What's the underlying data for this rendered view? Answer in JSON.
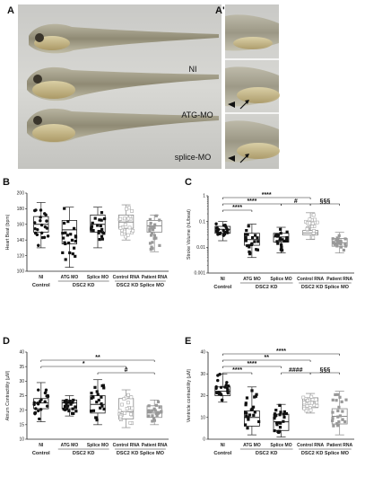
{
  "images": {
    "panel_a_letter": "A",
    "panel_a2_letter": "A'",
    "labels": [
      "NI",
      "ATG-MO",
      "splice-MO"
    ]
  },
  "x_labels": [
    "NI",
    "ATG MO",
    "Splice MO",
    "Control RNA",
    "Patient RNA"
  ],
  "group_labels": [
    "Control",
    "DSC2 KD",
    "DSC2 KD Splice MO"
  ],
  "chart_data": [
    {
      "panel": "B",
      "type": "box",
      "ylabel": "Heart Beat (bpm)",
      "ylim": [
        100,
        200
      ],
      "yticks": [
        "100",
        "120",
        "140",
        "160",
        "180",
        "200"
      ],
      "log": false,
      "boxes": [
        {
          "min": 130,
          "q1": 150,
          "median": 160,
          "q3": 170,
          "max": 188
        },
        {
          "min": 105,
          "q1": 135,
          "median": 153,
          "q3": 165,
          "max": 182
        },
        {
          "min": 130,
          "q1": 150,
          "median": 160,
          "q3": 172,
          "max": 182
        },
        {
          "min": 140,
          "q1": 155,
          "median": 163,
          "q3": 172,
          "max": 185
        },
        {
          "min": 125,
          "q1": 150,
          "median": 158,
          "q3": 165,
          "max": 172
        }
      ],
      "sig": []
    },
    {
      "panel": "C",
      "type": "box",
      "ylabel": "Stroke Volume (nL/beat)",
      "log": true,
      "ylim": [
        0.001,
        1
      ],
      "yticks": [
        "0.001",
        "0.01",
        "0.1",
        "1"
      ],
      "yticks_values": [
        0.001,
        0.01,
        0.1,
        1
      ],
      "boxes": [
        {
          "min": 0.018,
          "q1": 0.035,
          "median": 0.05,
          "q3": 0.065,
          "max": 0.1
        },
        {
          "min": 0.004,
          "q1": 0.012,
          "median": 0.02,
          "q3": 0.035,
          "max": 0.08
        },
        {
          "min": 0.006,
          "q1": 0.016,
          "median": 0.025,
          "q3": 0.035,
          "max": 0.06
        },
        {
          "min": 0.02,
          "q1": 0.03,
          "median": 0.036,
          "q3": 0.045,
          "max": 0.22
        },
        {
          "min": 0.006,
          "q1": 0.011,
          "median": 0.015,
          "q3": 0.022,
          "max": 0.038
        }
      ],
      "sig": [
        {
          "from": 0,
          "to": 3,
          "label": "****",
          "level": 4
        },
        {
          "from": 0,
          "to": 2,
          "label": "****",
          "level": 3
        },
        {
          "from": 0,
          "to": 1,
          "label": "****",
          "level": 2
        },
        {
          "from": 2,
          "to": 3,
          "label": "#",
          "level": 3
        },
        {
          "from": 3,
          "to": 4,
          "label": "§§§",
          "level": 3
        }
      ]
    },
    {
      "panel": "D",
      "type": "box",
      "ylabel": "Atrium Contractility (µM)",
      "ylim": [
        10,
        40
      ],
      "yticks": [
        "10",
        "15",
        "20",
        "25",
        "30",
        "35",
        "40"
      ],
      "log": false,
      "boxes": [
        {
          "min": 16,
          "q1": 20.5,
          "median": 22.5,
          "q3": 24,
          "max": 29.5
        },
        {
          "min": 18,
          "q1": 20.5,
          "median": 22.5,
          "q3": 23.5,
          "max": 25
        },
        {
          "min": 15,
          "q1": 19,
          "median": 22,
          "q3": 25,
          "max": 30.5
        },
        {
          "min": 14,
          "q1": 17,
          "median": 19.5,
          "q3": 24,
          "max": 27
        },
        {
          "min": 15,
          "q1": 17.5,
          "median": 19,
          "q3": 21.5,
          "max": 23.5
        }
      ],
      "sig": [
        {
          "from": 0,
          "to": 4,
          "label": "**",
          "level": 3
        },
        {
          "from": 0,
          "to": 3,
          "label": "*",
          "level": 2
        },
        {
          "from": 2,
          "to": 4,
          "label": "#",
          "level": 1
        }
      ]
    },
    {
      "panel": "E",
      "type": "box",
      "ylabel": "Ventricle contractility (µM)",
      "ylim": [
        0,
        40
      ],
      "yticks": [
        "0",
        "10",
        "20",
        "30",
        "40"
      ],
      "log": false,
      "boxes": [
        {
          "min": 17,
          "q1": 20,
          "median": 22,
          "q3": 24,
          "max": 30
        },
        {
          "min": 2,
          "q1": 6,
          "median": 10,
          "q3": 13,
          "max": 24
        },
        {
          "min": 1,
          "q1": 4,
          "median": 8,
          "q3": 11.5,
          "max": 16
        },
        {
          "min": 12,
          "q1": 14.5,
          "median": 17,
          "q3": 19,
          "max": 21
        },
        {
          "min": 2,
          "q1": 7,
          "median": 10.5,
          "q3": 14,
          "max": 22
        }
      ],
      "sig": [
        {
          "from": 0,
          "to": 4,
          "label": "****",
          "level": 4
        },
        {
          "from": 0,
          "to": 3,
          "label": "**",
          "level": 3
        },
        {
          "from": 0,
          "to": 2,
          "label": "****",
          "level": 2
        },
        {
          "from": 0,
          "to": 1,
          "label": "****",
          "level": 1
        },
        {
          "from": 2,
          "to": 3,
          "label": "####",
          "level": 1
        },
        {
          "from": 3,
          "to": 4,
          "label": "§§§",
          "level": 1
        }
      ]
    }
  ]
}
